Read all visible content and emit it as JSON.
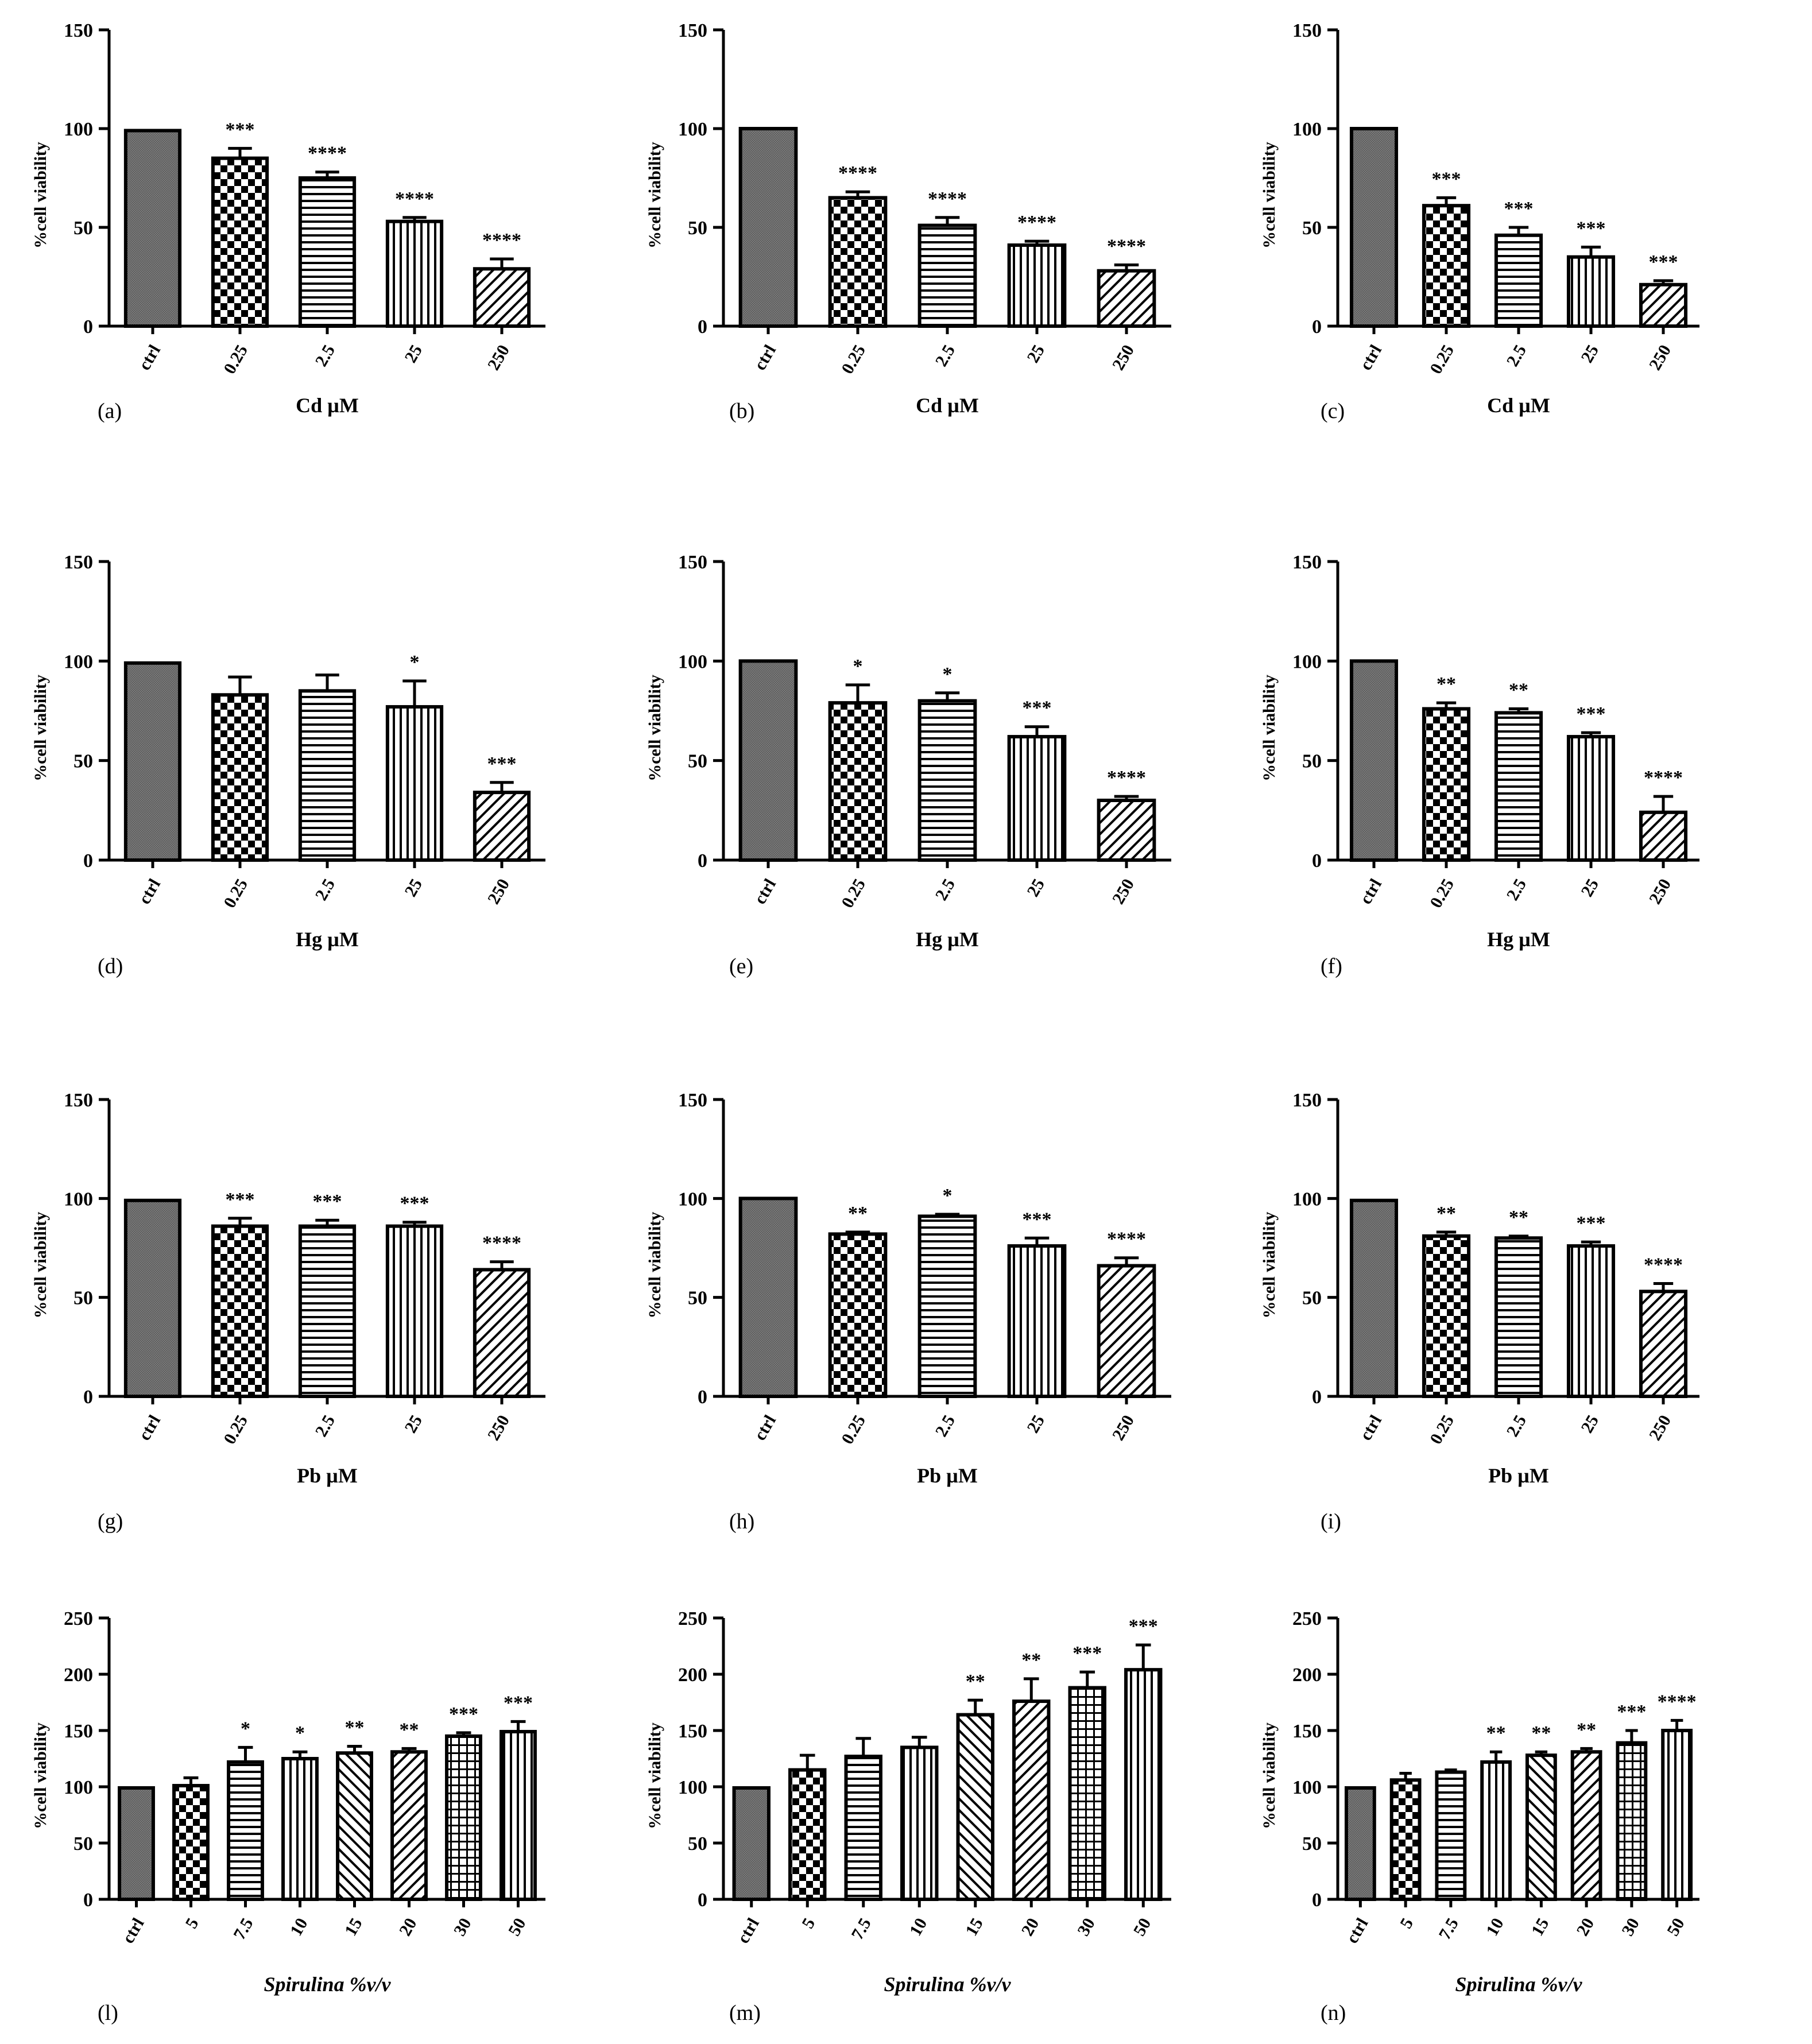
{
  "figure": {
    "ylabel": "%cell viability"
  },
  "chart_data": [
    {
      "panel": "(a)",
      "type": "bar",
      "xlabel": "Cd µM",
      "ylabel": "%cell viability",
      "ylim": [
        0,
        150
      ],
      "yticks": [
        0,
        50,
        100,
        150
      ],
      "categories": [
        "ctrl",
        "0.25",
        "2.5",
        "25",
        "250"
      ],
      "values": [
        99,
        85,
        75,
        53,
        29
      ],
      "errors": [
        0,
        5,
        3,
        2,
        5
      ],
      "significance": [
        "",
        "***",
        "****",
        "****",
        "****"
      ]
    },
    {
      "panel": "(b)",
      "type": "bar",
      "xlabel": "Cd µM",
      "ylabel": "%cell viability",
      "ylim": [
        0,
        150
      ],
      "yticks": [
        0,
        50,
        100,
        150
      ],
      "categories": [
        "ctrl",
        "0.25",
        "2.5",
        "25",
        "250"
      ],
      "values": [
        100,
        65,
        51,
        41,
        28
      ],
      "errors": [
        0,
        3,
        4,
        2,
        3
      ],
      "significance": [
        "",
        "****",
        "****",
        "****",
        "****"
      ]
    },
    {
      "panel": "(c)",
      "type": "bar",
      "xlabel": "Cd µM",
      "ylabel": "%cell viability",
      "ylim": [
        0,
        150
      ],
      "yticks": [
        0,
        50,
        100,
        150
      ],
      "categories": [
        "ctrl",
        "0.25",
        "2.5",
        "25",
        "250"
      ],
      "values": [
        100,
        61,
        46,
        35,
        21
      ],
      "errors": [
        0,
        4,
        4,
        5,
        2
      ],
      "significance": [
        "",
        "***",
        "***",
        "***",
        "***"
      ]
    },
    {
      "panel": "(d)",
      "type": "bar",
      "xlabel": "Hg µM",
      "ylabel": "%cell viability",
      "ylim": [
        0,
        150
      ],
      "yticks": [
        0,
        50,
        100,
        150
      ],
      "categories": [
        "ctrl",
        "0.25",
        "2.5",
        "25",
        "250"
      ],
      "values": [
        99,
        83,
        85,
        77,
        34
      ],
      "errors": [
        0,
        9,
        8,
        13,
        5
      ],
      "significance": [
        "",
        "",
        "",
        "*",
        "***"
      ]
    },
    {
      "panel": "(e)",
      "type": "bar",
      "xlabel": "Hg µM",
      "ylabel": "%cell viability",
      "ylim": [
        0,
        150
      ],
      "yticks": [
        0,
        50,
        100,
        150
      ],
      "categories": [
        "ctrl",
        "0.25",
        "2.5",
        "25",
        "250"
      ],
      "values": [
        100,
        79,
        80,
        62,
        30
      ],
      "errors": [
        0,
        9,
        4,
        5,
        2
      ],
      "significance": [
        "",
        "*",
        "*",
        "***",
        "****"
      ]
    },
    {
      "panel": "(f)",
      "type": "bar",
      "xlabel": "Hg µM",
      "ylabel": "%cell viability",
      "ylim": [
        0,
        150
      ],
      "yticks": [
        0,
        50,
        100,
        150
      ],
      "categories": [
        "ctrl",
        "0.25",
        "2.5",
        "25",
        "250"
      ],
      "values": [
        100,
        76,
        74,
        62,
        24
      ],
      "errors": [
        0,
        3,
        2,
        2,
        8
      ],
      "significance": [
        "",
        "**",
        "**",
        "***",
        "****"
      ]
    },
    {
      "panel": "(g)",
      "type": "bar",
      "xlabel": "Pb µM",
      "ylabel": "%cell viability",
      "ylim": [
        0,
        150
      ],
      "yticks": [
        0,
        50,
        100,
        150
      ],
      "categories": [
        "ctrl",
        "0.25",
        "2.5",
        "25",
        "250"
      ],
      "values": [
        99,
        86,
        86,
        86,
        64
      ],
      "errors": [
        0,
        4,
        3,
        2,
        4
      ],
      "significance": [
        "",
        "***",
        "***",
        "***",
        "****"
      ]
    },
    {
      "panel": "(h)",
      "type": "bar",
      "xlabel": "Pb µM",
      "ylabel": "%cell viability",
      "ylim": [
        0,
        150
      ],
      "yticks": [
        0,
        50,
        100,
        150
      ],
      "categories": [
        "ctrl",
        "0.25",
        "2.5",
        "25",
        "250"
      ],
      "values": [
        100,
        82,
        91,
        76,
        66
      ],
      "errors": [
        0,
        1,
        1,
        4,
        4
      ],
      "significance": [
        "",
        "**",
        "*",
        "***",
        "****"
      ]
    },
    {
      "panel": "(i)",
      "type": "bar",
      "xlabel": "Pb µM",
      "ylabel": "%cell viability",
      "ylim": [
        0,
        150
      ],
      "yticks": [
        0,
        50,
        100,
        150
      ],
      "categories": [
        "ctrl",
        "0.25",
        "2.5",
        "25",
        "250"
      ],
      "values": [
        99,
        81,
        80,
        76,
        53
      ],
      "errors": [
        0,
        2,
        1,
        2,
        4
      ],
      "significance": [
        "",
        "**",
        "**",
        "***",
        "****"
      ]
    },
    {
      "panel": "(l)",
      "type": "bar",
      "xlabel": "Spirulina %v/v",
      "ylabel": "%cell viability",
      "ylim": [
        0,
        250
      ],
      "yticks": [
        0,
        50,
        100,
        150,
        200,
        250
      ],
      "categories": [
        "ctrl",
        "5",
        "7.5",
        "10",
        "15",
        "20",
        "30",
        "50"
      ],
      "values": [
        99,
        101,
        122,
        125,
        130,
        131,
        145,
        149
      ],
      "errors": [
        0,
        7,
        13,
        6,
        6,
        3,
        3,
        9
      ],
      "significance": [
        "",
        "",
        "*",
        "*",
        "**",
        "**",
        "***",
        "***"
      ]
    },
    {
      "panel": "(m)",
      "type": "bar",
      "xlabel": "Spirulina %v/v",
      "ylabel": "%cell viability",
      "ylim": [
        0,
        250
      ],
      "yticks": [
        0,
        50,
        100,
        150,
        200,
        250
      ],
      "categories": [
        "ctrl",
        "5",
        "7.5",
        "10",
        "15",
        "20",
        "30",
        "50"
      ],
      "values": [
        99,
        115,
        127,
        135,
        164,
        176,
        188,
        204
      ],
      "errors": [
        0,
        13,
        16,
        9,
        13,
        20,
        14,
        22
      ],
      "significance": [
        "",
        "",
        "",
        "",
        "**",
        "**",
        "***",
        "***"
      ]
    },
    {
      "panel": "(n)",
      "type": "bar",
      "xlabel": "Spirulina %v/v",
      "ylabel": "%cell viability",
      "ylim": [
        0,
        250
      ],
      "yticks": [
        0,
        50,
        100,
        150,
        200,
        250
      ],
      "categories": [
        "ctrl",
        "5",
        "7.5",
        "10",
        "15",
        "20",
        "30",
        "50"
      ],
      "values": [
        99,
        106,
        113,
        122,
        128,
        131,
        139,
        150
      ],
      "errors": [
        0,
        6,
        2,
        9,
        3,
        3,
        11,
        9
      ],
      "significance": [
        "",
        "",
        "",
        "**",
        "**",
        "**",
        "***",
        "****"
      ]
    }
  ]
}
